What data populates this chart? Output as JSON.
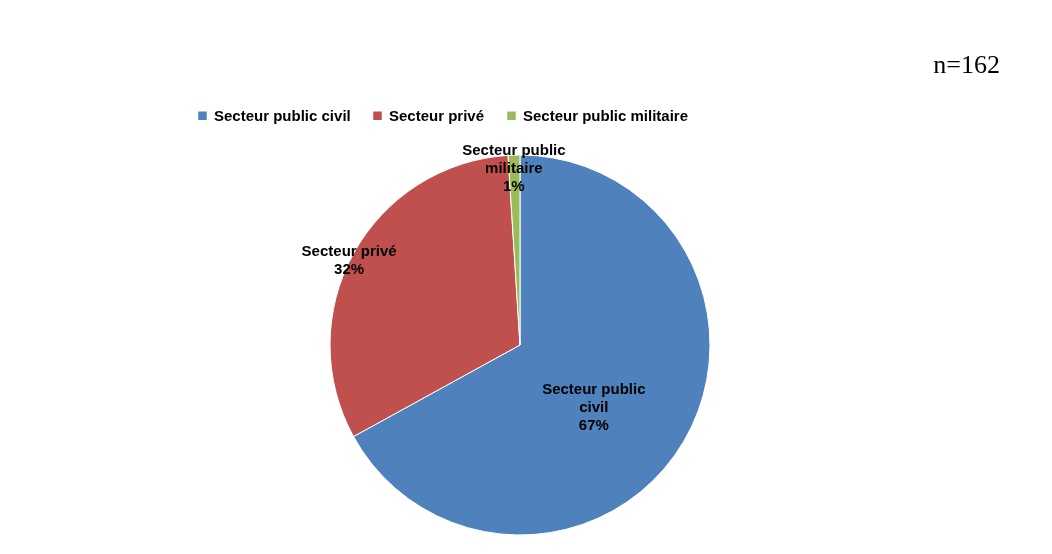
{
  "chart_data": {
    "type": "pie",
    "categories": [
      "Secteur public civil",
      "Secteur privé",
      "Secteur public militaire"
    ],
    "values": [
      67,
      32,
      1
    ],
    "colors": [
      "#4f81bd",
      "#c0504d",
      "#9bbb59"
    ],
    "value_labels": [
      "67%",
      "32%",
      "1%"
    ],
    "legend": "top",
    "annotations": [
      "n=162"
    ]
  }
}
